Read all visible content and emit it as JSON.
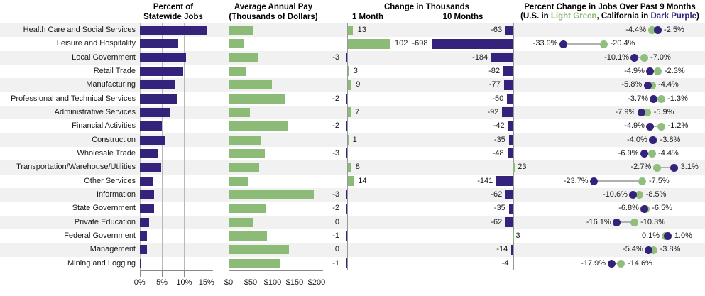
{
  "colors": {
    "purple": "#35227b",
    "green": "#8cbb77",
    "dot_green": "#8fbe7d",
    "stripe": "#f1f1f1",
    "grid": "#b8b8b8",
    "baseline": "#999999",
    "connector": "#b0b0b0"
  },
  "panels": {
    "percent_jobs": {
      "title_line1": "Percent of",
      "title_line2": "Statewide Jobs",
      "ticks": [
        {
          "label": "0%",
          "value": 0
        },
        {
          "label": "5%",
          "value": 5
        },
        {
          "label": "10%",
          "value": 10
        },
        {
          "label": "15%",
          "value": 15
        }
      ]
    },
    "annual_pay": {
      "title_line1": "Average Annual Pay",
      "title_line2": "(Thousands of Dollars)",
      "ticks": [
        {
          "label": "$0",
          "value": 0
        },
        {
          "label": "$50",
          "value": 50
        },
        {
          "label": "$100",
          "value": 100
        },
        {
          "label": "$150",
          "value": 150
        },
        {
          "label": "$200",
          "value": 200
        }
      ]
    },
    "change": {
      "title": "Change in Thousands",
      "col1": "1 Month",
      "col2": "10 Months"
    },
    "pct_change": {
      "title": "Percent Change in Jobs Over Past 9 Months",
      "subtitle_prefix": "(U.S. in ",
      "subtitle_green": "Light Green",
      "subtitle_mid": ", California in ",
      "subtitle_purple": "Dark Purple",
      "subtitle_suffix": ")"
    }
  },
  "chart_data": {
    "type": "table",
    "industries": [
      "Health Care and Social Services",
      "Leisure and Hospitality",
      "Local Government",
      "Retail Trade",
      "Manufacturing",
      "Professional and Technical Services",
      "Administrative Services",
      "Financial Activities",
      "Construction",
      "Wholesale Trade",
      "Transportation/Warehouse/Utilities",
      "Other Services",
      "Information",
      "State Government",
      "Private Education",
      "Federal Government",
      "Management",
      "Mining and Logging"
    ],
    "percent_of_statewide_jobs": [
      15.1,
      8.6,
      10.3,
      9.7,
      7.9,
      8.3,
      6.6,
      4.9,
      5.5,
      3.9,
      4.7,
      2.8,
      3.2,
      3.1,
      2.0,
      1.5,
      1.5,
      0.1
    ],
    "avg_annual_pay_thousands": [
      55,
      34,
      66,
      39,
      98,
      129,
      48,
      135,
      74,
      82,
      69,
      44,
      192,
      85,
      56,
      87,
      137,
      117
    ],
    "change_1_month_thousands": [
      13,
      102,
      -3,
      3,
      9,
      -2,
      7,
      -2,
      1,
      -3,
      8,
      14,
      -3,
      -2,
      0,
      -1,
      0,
      -1
    ],
    "change_10_months_thousands": [
      -63,
      -698,
      -184,
      -82,
      -77,
      -50,
      -92,
      -42,
      -35,
      -48,
      23,
      -141,
      -62,
      -35,
      -62,
      3,
      -14,
      -4
    ],
    "pct_change_9mo_us": [
      -4.4,
      -20.4,
      -7.0,
      -2.3,
      -4.4,
      -1.3,
      -5.9,
      -1.2,
      -3.8,
      -4.4,
      -2.7,
      -7.5,
      -8.5,
      -6.5,
      -10.3,
      0.1,
      -3.8,
      -14.6
    ],
    "pct_change_9mo_california": [
      -2.5,
      -33.9,
      -10.1,
      -4.9,
      -5.8,
      -3.7,
      -7.9,
      -4.9,
      -4.0,
      -6.9,
      3.1,
      -23.7,
      -10.6,
      -6.8,
      -16.1,
      1.0,
      -5.4,
      -17.9
    ]
  }
}
